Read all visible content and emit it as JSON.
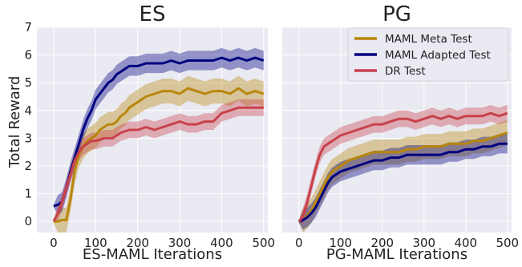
{
  "figure": {
    "ylabel": "Total Reward",
    "legend_position": "top-right of right panel"
  },
  "chart_data": [
    {
      "type": "line",
      "title": "ES",
      "xlabel": "ES-MAML Iterations",
      "ylabel": "Total Reward",
      "xlim": [
        -40,
        510
      ],
      "ylim": [
        -0.4,
        7
      ],
      "xticks": [
        0,
        100,
        200,
        300,
        400,
        500
      ],
      "yticks": [
        0,
        1,
        2,
        3,
        4,
        5,
        6,
        7
      ],
      "grid": true,
      "series": [
        {
          "name": "MAML Meta Test",
          "color": "#b8860b",
          "x": [
            0,
            10,
            20,
            30,
            40,
            50,
            60,
            70,
            80,
            90,
            100,
            110,
            120,
            130,
            140,
            150,
            160,
            170,
            180,
            190,
            200,
            220,
            240,
            260,
            280,
            300,
            320,
            340,
            360,
            380,
            400,
            420,
            440,
            460,
            480,
            500
          ],
          "y": [
            0,
            0,
            0.05,
            0.05,
            0.8,
            1.8,
            2.4,
            2.7,
            2.9,
            3.0,
            3.1,
            3.3,
            3.4,
            3.5,
            3.5,
            3.6,
            3.8,
            3.9,
            4.1,
            4.2,
            4.3,
            4.5,
            4.6,
            4.7,
            4.7,
            4.6,
            4.8,
            4.7,
            4.6,
            4.7,
            4.7,
            4.6,
            4.8,
            4.6,
            4.7,
            4.6
          ],
          "spread": 0.45
        },
        {
          "name": "MAML Adapted Test",
          "color": "#000080",
          "x": [
            0,
            10,
            20,
            30,
            40,
            50,
            60,
            70,
            80,
            90,
            100,
            110,
            120,
            130,
            140,
            150,
            160,
            170,
            180,
            190,
            200,
            220,
            240,
            260,
            280,
            300,
            320,
            340,
            360,
            380,
            400,
            420,
            440,
            460,
            480,
            500
          ],
          "y": [
            0.55,
            0.6,
            0.7,
            1.2,
            1.8,
            2.3,
            2.8,
            3.3,
            3.7,
            4.0,
            4.4,
            4.6,
            4.8,
            5.0,
            5.1,
            5.3,
            5.4,
            5.5,
            5.6,
            5.6,
            5.6,
            5.7,
            5.7,
            5.7,
            5.8,
            5.7,
            5.8,
            5.8,
            5.8,
            5.8,
            5.9,
            5.8,
            5.9,
            5.8,
            5.9,
            5.8
          ],
          "spread": 0.35
        },
        {
          "name": "DR Test",
          "color": "#c8414b",
          "x": [
            0,
            10,
            20,
            30,
            40,
            50,
            60,
            70,
            80,
            90,
            100,
            120,
            140,
            160,
            180,
            200,
            220,
            240,
            260,
            280,
            300,
            320,
            340,
            360,
            380,
            400,
            420,
            440,
            460,
            480,
            500
          ],
          "y": [
            0,
            0.3,
            0.7,
            1.2,
            1.7,
            2.2,
            2.5,
            2.7,
            2.8,
            2.9,
            2.9,
            3.0,
            3.0,
            3.2,
            3.3,
            3.3,
            3.4,
            3.3,
            3.4,
            3.5,
            3.6,
            3.5,
            3.5,
            3.6,
            3.6,
            3.9,
            4.0,
            4.1,
            4.1,
            4.1,
            4.1
          ],
          "spread": 0.3
        }
      ]
    },
    {
      "type": "line",
      "title": "PG",
      "xlabel": "PG-MAML Iterations",
      "xlim": [
        -40,
        510
      ],
      "ylim": [
        -0.4,
        7
      ],
      "xticks": [
        0,
        100,
        200,
        300,
        400,
        500
      ],
      "yticks": [
        0,
        1,
        2,
        3,
        4,
        5,
        6,
        7
      ],
      "grid": true,
      "series": [
        {
          "name": "MAML Meta Test",
          "color": "#b8860b",
          "x": [
            0,
            10,
            20,
            30,
            40,
            50,
            60,
            70,
            80,
            90,
            100,
            120,
            140,
            160,
            180,
            200,
            220,
            240,
            260,
            280,
            300,
            320,
            340,
            360,
            380,
            400,
            420,
            440,
            460,
            480,
            500
          ],
          "y": [
            0,
            0.05,
            0.2,
            0.4,
            0.7,
            1.0,
            1.3,
            1.6,
            1.8,
            1.9,
            2.0,
            2.2,
            2.3,
            2.4,
            2.5,
            2.5,
            2.5,
            2.5,
            2.6,
            2.6,
            2.7,
            2.7,
            2.7,
            2.8,
            2.8,
            2.8,
            2.9,
            2.9,
            3.0,
            3.1,
            3.2
          ],
          "spread": 0.45
        },
        {
          "name": "MAML Adapted Test",
          "color": "#000080",
          "x": [
            0,
            10,
            20,
            30,
            40,
            50,
            60,
            70,
            80,
            90,
            100,
            120,
            140,
            160,
            180,
            200,
            220,
            240,
            260,
            280,
            300,
            320,
            340,
            360,
            380,
            400,
            420,
            440,
            460,
            480,
            500
          ],
          "y": [
            0,
            0.05,
            0.15,
            0.3,
            0.5,
            0.8,
            1.1,
            1.4,
            1.6,
            1.7,
            1.8,
            1.9,
            2.0,
            2.1,
            2.2,
            2.2,
            2.3,
            2.3,
            2.4,
            2.4,
            2.4,
            2.4,
            2.4,
            2.5,
            2.5,
            2.6,
            2.6,
            2.7,
            2.7,
            2.8,
            2.8
          ],
          "spread": 0.35
        },
        {
          "name": "DR Test",
          "color": "#c8414b",
          "x": [
            0,
            10,
            20,
            30,
            40,
            50,
            60,
            70,
            80,
            90,
            100,
            120,
            140,
            160,
            180,
            200,
            220,
            240,
            260,
            280,
            300,
            320,
            340,
            360,
            380,
            400,
            420,
            440,
            460,
            480,
            500
          ],
          "y": [
            0,
            0.2,
            0.7,
            1.3,
            1.9,
            2.4,
            2.7,
            2.8,
            2.9,
            3.0,
            3.1,
            3.2,
            3.3,
            3.4,
            3.5,
            3.5,
            3.6,
            3.7,
            3.7,
            3.6,
            3.7,
            3.8,
            3.7,
            3.8,
            3.7,
            3.8,
            3.8,
            3.8,
            3.9,
            3.8,
            3.9
          ],
          "spread": 0.3
        }
      ]
    }
  ]
}
